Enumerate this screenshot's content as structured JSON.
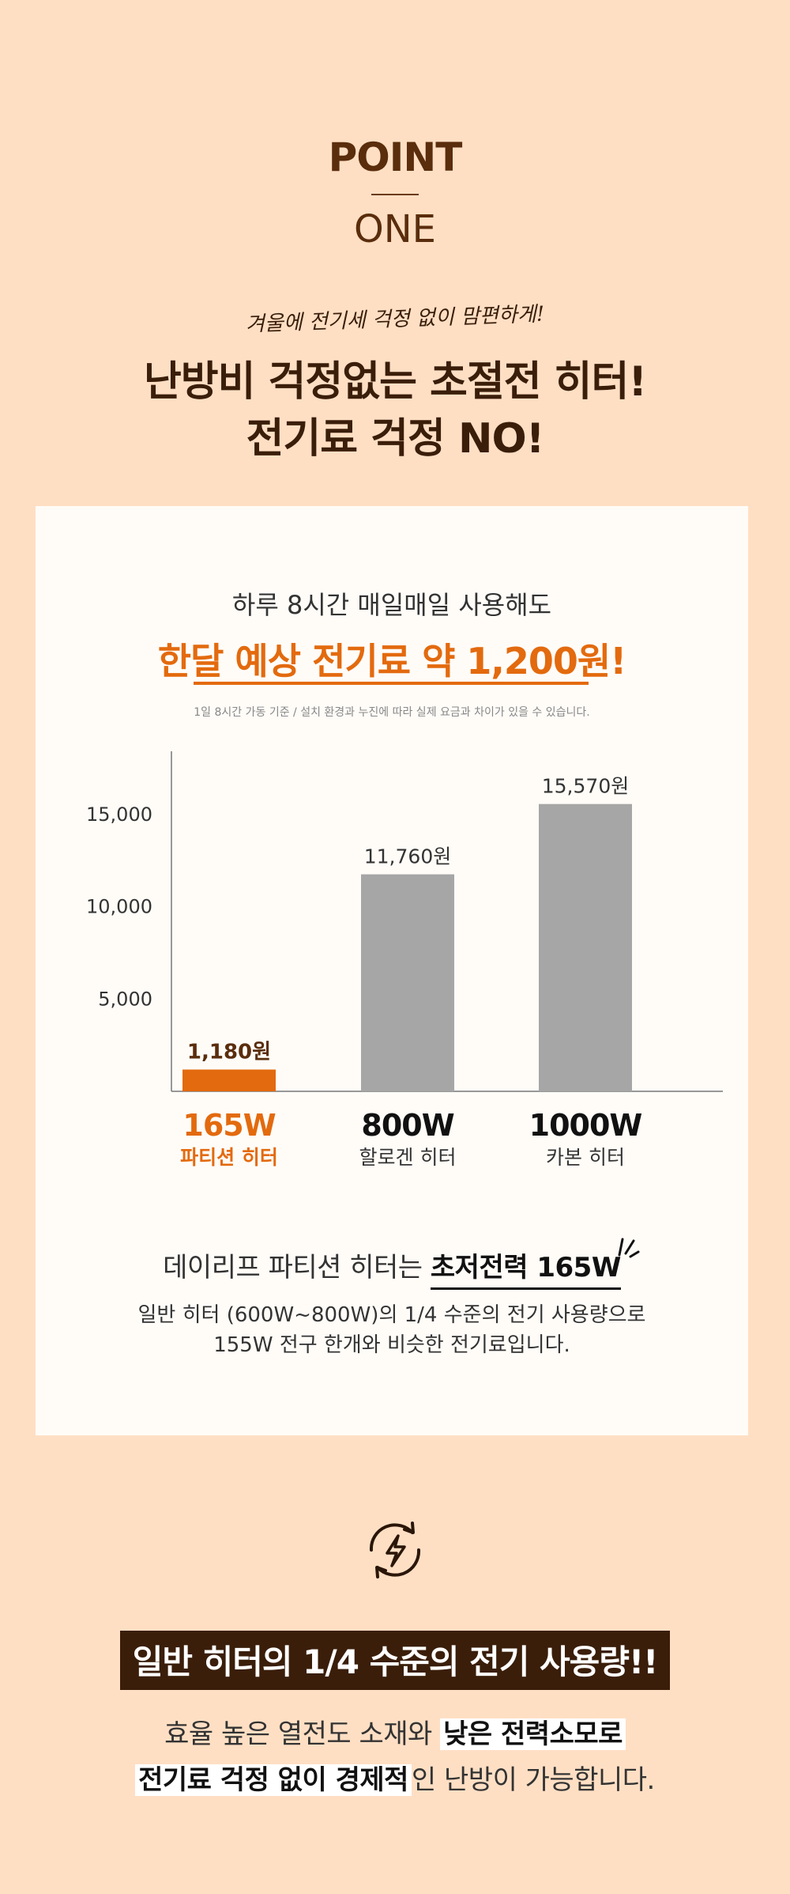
{
  "point": {
    "title": "POINT",
    "subtitle": "ONE"
  },
  "tagline": "겨울에 전기세 걱정 없이 맘편하게!",
  "headline": {
    "line1": "난방비 걱정없는 초절전 히터!",
    "line2": "전기료 걱정 NO!"
  },
  "card": {
    "intro": "하루 8시간 매일매일 사용해도",
    "highlight": "한달 예상 전기료 약 1,200원!",
    "note": "1일 8시간 가동 기준 / 설치 환경과 누진에 따라 실제 요금과 차이가 있을 수 있습니다."
  },
  "chart_data": {
    "type": "bar",
    "categories": [
      "165W",
      "800W",
      "1000W"
    ],
    "sublabels": [
      "파티션 히터",
      "할로겐 히터",
      "카본 히터"
    ],
    "values": [
      1180,
      11760,
      15570
    ],
    "value_labels": [
      "1,180원",
      "11,760원",
      "15,570원"
    ],
    "yticks": [
      5000,
      10000,
      15000
    ],
    "ytick_labels": [
      "5,000",
      "10,000",
      "15,000"
    ],
    "ylim": [
      0,
      18000
    ],
    "colors": [
      "#e36a0e",
      "#a6a6a6",
      "#a6a6a6"
    ],
    "grid": false
  },
  "description": {
    "line1_prefix": "데이리프 파티션 히터는 ",
    "line1_em": "초저전력 165W",
    "line2": "일반 히터 (600W~800W)의 1/4 수준의 전기 사용량으로",
    "line3": "155W 전구 한개와 비슷한 전기료입니다."
  },
  "icons": {
    "energy": "energy-cycle-icon",
    "burst": "burst-lines-icon"
  },
  "banner": "일반 히터의 1/4 수준의 전기 사용량!!",
  "bottom": {
    "line1_prefix": "효율 높은 열전도 소재와 ",
    "line1_em": "낮은 전력소모로",
    "line2_em": "전기료 걱정 없이 경제적",
    "line2_suffix": "인 난방이 가능합니다."
  }
}
